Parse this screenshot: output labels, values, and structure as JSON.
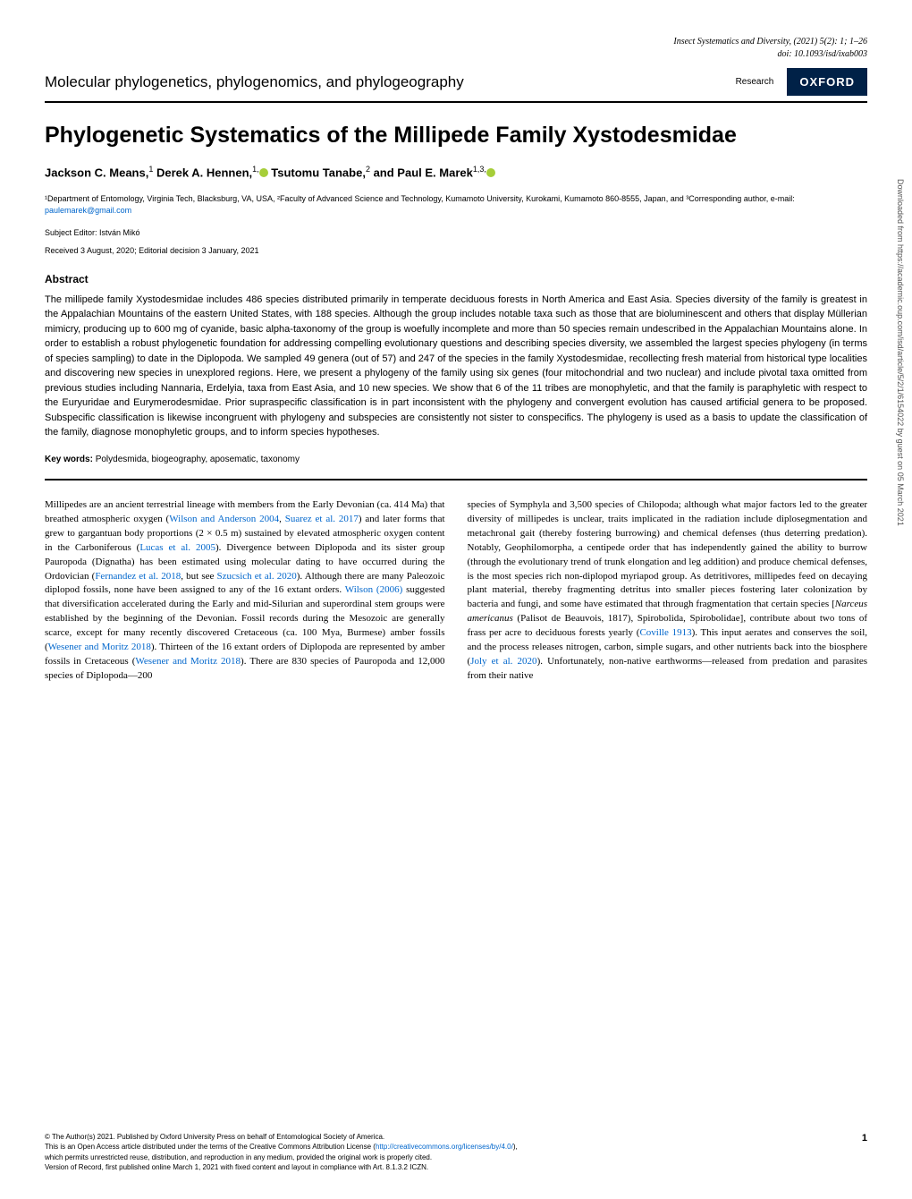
{
  "header": {
    "journal": "Insect Systematics and Diversity,",
    "citation": "(2021) 5(2): 1; 1–26",
    "doi": "doi: 10.1093/isd/ixab003",
    "type": "Research"
  },
  "section_label": "Molecular phylogenetics, phylogenomics, and phylogeography",
  "publisher_badge": "OXFORD",
  "title": "Phylogenetic Systematics of the Millipede Family Xystodesmidae",
  "authors_html": "Jackson C. Means,<sup>1</sup> Derek A. Hennen,<sup>1,●</sup> Tsutomu Tanabe,<sup>2</sup> and Paul E. Marek<sup>1,3,●</sup>",
  "affiliations": {
    "text": "¹Department of Entomology, Virginia Tech, Blacksburg, VA, USA, ²Faculty of Advanced Science and Technology, Kumamoto University, Kurokami, Kumamoto 860-8555, Japan, and ³Corresponding author, e-mail: ",
    "email": "paulemarek@gmail.com"
  },
  "editor": "Subject Editor: István Mikó",
  "dates": "Received 3 August, 2020; Editorial decision 3 January, 2021",
  "abstract": {
    "heading": "Abstract",
    "text": "The millipede family Xystodesmidae includes 486 species distributed primarily in temperate deciduous forests in North America and East Asia. Species diversity of the family is greatest in the Appalachian Mountains of the eastern United States, with 188 species. Although the group includes notable taxa such as those that are bioluminescent and others that display Müllerian mimicry, producing up to 600 mg of cyanide, basic alpha-taxonomy of the group is woefully incomplete and more than 50 species remain undescribed in the Appalachian Mountains alone. In order to establish a robust phylogenetic foundation for addressing compelling evolutionary questions and describing species diversity, we assembled the largest species phylogeny (in terms of species sampling) to date in the Diplopoda. We sampled 49 genera (out of 57) and 247 of the species in the family Xystodesmidae, recollecting fresh material from historical type localities and discovering new species in unexplored regions. Here, we present a phylogeny of the family using six genes (four mitochondrial and two nuclear) and include pivotal taxa omitted from previous studies including Nannaria, Erdelyia, taxa from East Asia, and 10 new species. We show that 6 of the 11 tribes are monophyletic, and that the family is paraphyletic with respect to the Euryuridae and Eurymerodesmidae. Prior supraspecific classification is in part inconsistent with the phylogeny and convergent evolution has caused artificial genera to be proposed. Subspecific classification is likewise incongruent with phylogeny and subspecies are consistently not sister to conspecifics. The phylogeny is used as a basis to update the classification of the family, diagnose monophyletic groups, and to inform species hypotheses."
  },
  "keywords": {
    "label": "Key words:",
    "text": "Polydesmida, biogeography, aposematic, taxonomy"
  },
  "body": {
    "col1_parts": [
      {
        "t": "plain",
        "v": "Millipedes are an ancient terrestrial lineage with members from the Early Devonian (ca. 414 Ma) that breathed atmospheric oxygen ("
      },
      {
        "t": "cite",
        "v": "Wilson and Anderson 2004"
      },
      {
        "t": "plain",
        "v": ", "
      },
      {
        "t": "cite",
        "v": "Suarez et al. 2017"
      },
      {
        "t": "plain",
        "v": ") and later forms that grew to gargantuan body proportions (2 × 0.5 m) sustained by elevated atmospheric oxygen content in the Carboniferous ("
      },
      {
        "t": "cite",
        "v": "Lucas et al. 2005"
      },
      {
        "t": "plain",
        "v": "). Divergence between Diplopoda and its sister group Pauropoda (Dignatha) has been estimated using molecular dating to have occurred during the Ordovician ("
      },
      {
        "t": "cite",
        "v": "Fernandez et al. 2018"
      },
      {
        "t": "plain",
        "v": ", but see "
      },
      {
        "t": "cite",
        "v": "Szucsich et al. 2020"
      },
      {
        "t": "plain",
        "v": "). Although there are many Paleozoic diplopod fossils, none have been assigned to any of the 16 extant orders. "
      },
      {
        "t": "cite",
        "v": "Wilson (2006)"
      },
      {
        "t": "plain",
        "v": " suggested that diversification accelerated during the Early and mid-Silurian and superordinal stem groups were established by the beginning of the Devonian. Fossil records during the Mesozoic are generally scarce, except for many recently discovered Cretaceous (ca. 100 Mya, Burmese) amber fossils ("
      },
      {
        "t": "cite",
        "v": "Wesener and Moritz 2018"
      },
      {
        "t": "plain",
        "v": "). Thirteen of the 16 extant orders of Diplopoda are represented by amber fossils in Cretaceous ("
      },
      {
        "t": "cite",
        "v": "Wesener and Moritz 2018"
      },
      {
        "t": "plain",
        "v": "). There are 830 species of Pauropoda and 12,000 species of Diplopoda—200"
      }
    ],
    "col2_parts": [
      {
        "t": "plain",
        "v": "species of Symphyla and 3,500 species of Chilopoda; although what major factors led to the greater diversity of millipedes is unclear, traits implicated in the radiation include diplosegmentation and metachronal gait (thereby fostering burrowing) and chemical defenses (thus deterring predation). Notably, Geophilomorpha, a centipede order that has independently gained the ability to burrow (through the evolutionary trend of trunk elongation and leg addition) and produce chemical defenses, is the most species rich non-diplopod myriapod group. As detritivores, millipedes feed on decaying plant material, thereby fragmenting detritus into smaller pieces fostering later colonization by bacteria and fungi, and some have estimated that through fragmentation that certain species ["
      },
      {
        "t": "italic",
        "v": "Narceus americanus"
      },
      {
        "t": "plain",
        "v": " (Palisot de Beauvois, 1817), Spirobolida, Spirobolidae], contribute about two tons of frass per acre to deciduous forests yearly ("
      },
      {
        "t": "cite",
        "v": "Coville 1913"
      },
      {
        "t": "plain",
        "v": "). This input aerates and conserves the soil, and the process releases nitrogen, carbon, simple sugars, and other nutrients back into the biosphere ("
      },
      {
        "t": "cite",
        "v": "Joly et al. 2020"
      },
      {
        "t": "plain",
        "v": "). Unfortunately, non-native earthworms—released from predation and parasites from their native"
      }
    ]
  },
  "footer": {
    "copyright": "© The Author(s) 2021. Published by Oxford University Press on behalf of Entomological Society of America.",
    "license_pre": "This is an Open Access article distributed under the terms of the Creative Commons Attribution License (",
    "license_link": "http://creativecommons.org/licenses/by/4.0/",
    "license_post": "),",
    "license2": "which permits unrestricted reuse, distribution, and reproduction in any medium, provided the original work is properly cited.",
    "version": "Version of Record, first published online March 1, 2021 with fixed content and layout in compliance with Art. 8.1.3.2 ICZN.",
    "page_number": "1"
  },
  "sidebar": "Downloaded from https://academic.oup.com/isd/article/5/2/1/6154022 by guest on 05 March 2021"
}
